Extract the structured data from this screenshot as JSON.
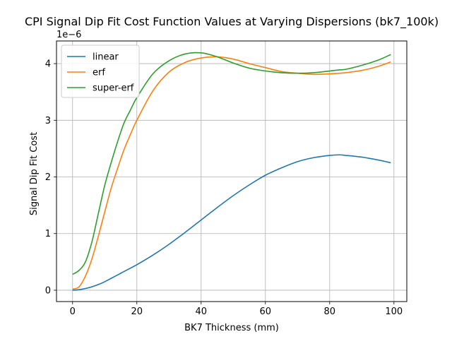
{
  "chart_data": {
    "type": "line",
    "title": "CPI Signal Dip Fit Cost Function Values at Varying Dispersions (bk7_100k)",
    "xlabel": "BK7 Thickness (mm)",
    "ylabel": "Signal Dip Fit Cost",
    "y_multiplier_label": "1e−6",
    "xlim": [
      -5,
      104
    ],
    "ylim": [
      -0.2,
      4.4
    ],
    "xticks": [
      0,
      20,
      40,
      60,
      80,
      100
    ],
    "xtick_labels": [
      "0",
      "20",
      "40",
      "60",
      "80",
      "100"
    ],
    "yticks": [
      0,
      1,
      2,
      3,
      4
    ],
    "ytick_labels": [
      "0",
      "1",
      "2",
      "3",
      "4"
    ],
    "grid": true,
    "legend_position": "upper-left",
    "x": [
      0,
      2,
      4,
      6,
      8,
      10,
      12,
      14,
      16,
      18,
      20,
      25,
      30,
      35,
      40,
      45,
      50,
      55,
      60,
      65,
      70,
      75,
      80,
      83,
      85,
      90,
      95,
      99
    ],
    "series": [
      {
        "name": "linear",
        "color": "#1f77b4",
        "values": [
          0.0,
          0.01,
          0.03,
          0.06,
          0.1,
          0.15,
          0.21,
          0.27,
          0.33,
          0.39,
          0.45,
          0.62,
          0.81,
          1.02,
          1.24,
          1.46,
          1.67,
          1.86,
          2.03,
          2.16,
          2.27,
          2.34,
          2.38,
          2.39,
          2.38,
          2.35,
          2.3,
          2.25
        ]
      },
      {
        "name": "erf",
        "color": "#ff7f0e",
        "values": [
          0.02,
          0.06,
          0.25,
          0.55,
          0.95,
          1.38,
          1.8,
          2.15,
          2.48,
          2.75,
          3.0,
          3.52,
          3.85,
          4.02,
          4.1,
          4.12,
          4.08,
          4.0,
          3.93,
          3.86,
          3.83,
          3.81,
          3.82,
          3.83,
          3.84,
          3.88,
          3.95,
          4.03
        ]
      },
      {
        "name": "super-erf",
        "color": "#2ca02c",
        "values": [
          0.28,
          0.35,
          0.5,
          0.85,
          1.35,
          1.85,
          2.25,
          2.62,
          2.95,
          3.18,
          3.4,
          3.82,
          4.05,
          4.17,
          4.19,
          4.12,
          4.01,
          3.92,
          3.87,
          3.84,
          3.83,
          3.84,
          3.87,
          3.89,
          3.9,
          3.97,
          4.06,
          4.16
        ]
      }
    ]
  }
}
